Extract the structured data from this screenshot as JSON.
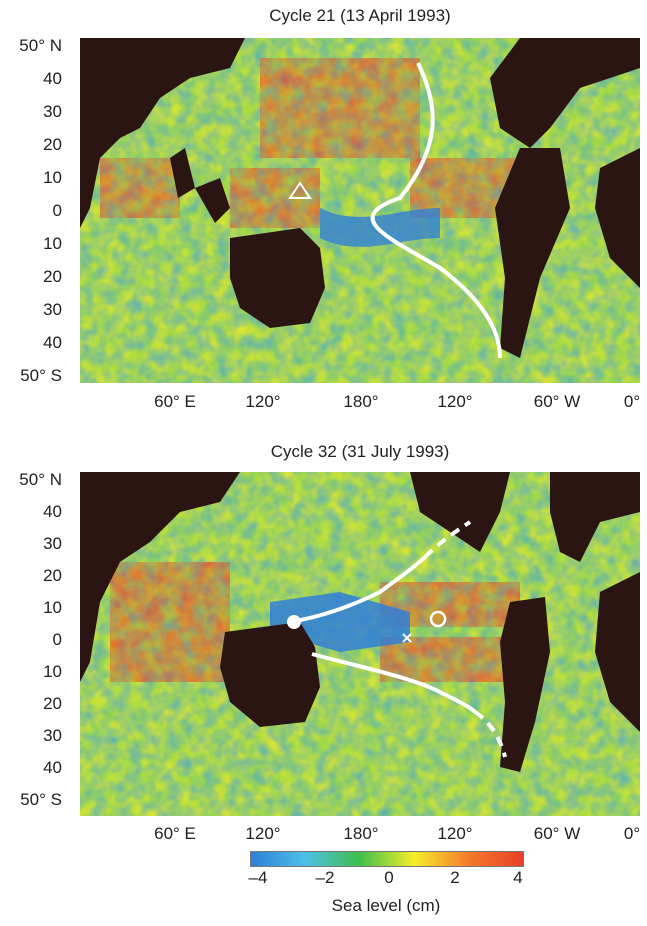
{
  "panels": [
    {
      "title": "Cycle 21 (13 April 1993)",
      "lat_labels": [
        "50° N",
        "40",
        "30",
        "20",
        "10",
        "0",
        "10",
        "20",
        "30",
        "40",
        "50° S"
      ],
      "lon_labels": [
        "60° E",
        "120°",
        "180°",
        "120°",
        "60° W",
        "0°"
      ]
    },
    {
      "title": "Cycle 32 (31 July 1993)",
      "lat_labels": [
        "50° N",
        "40",
        "30",
        "20",
        "10",
        "0",
        "10",
        "20",
        "30",
        "40",
        "50° S"
      ],
      "lon_labels": [
        "60° E",
        "120°",
        "180°",
        "120°",
        "60° W",
        "0°"
      ]
    }
  ],
  "colorbar": {
    "ticks": [
      "–4",
      "–2",
      "0",
      "2",
      "4"
    ],
    "title": "Sea level (cm)",
    "min": -4,
    "max": 4,
    "colors": [
      "#2f7fd8",
      "#4cc0e8",
      "#3fbf4a",
      "#f5ee2a",
      "#f57a2a",
      "#e8402a"
    ]
  },
  "land_color": "#2a1512"
}
